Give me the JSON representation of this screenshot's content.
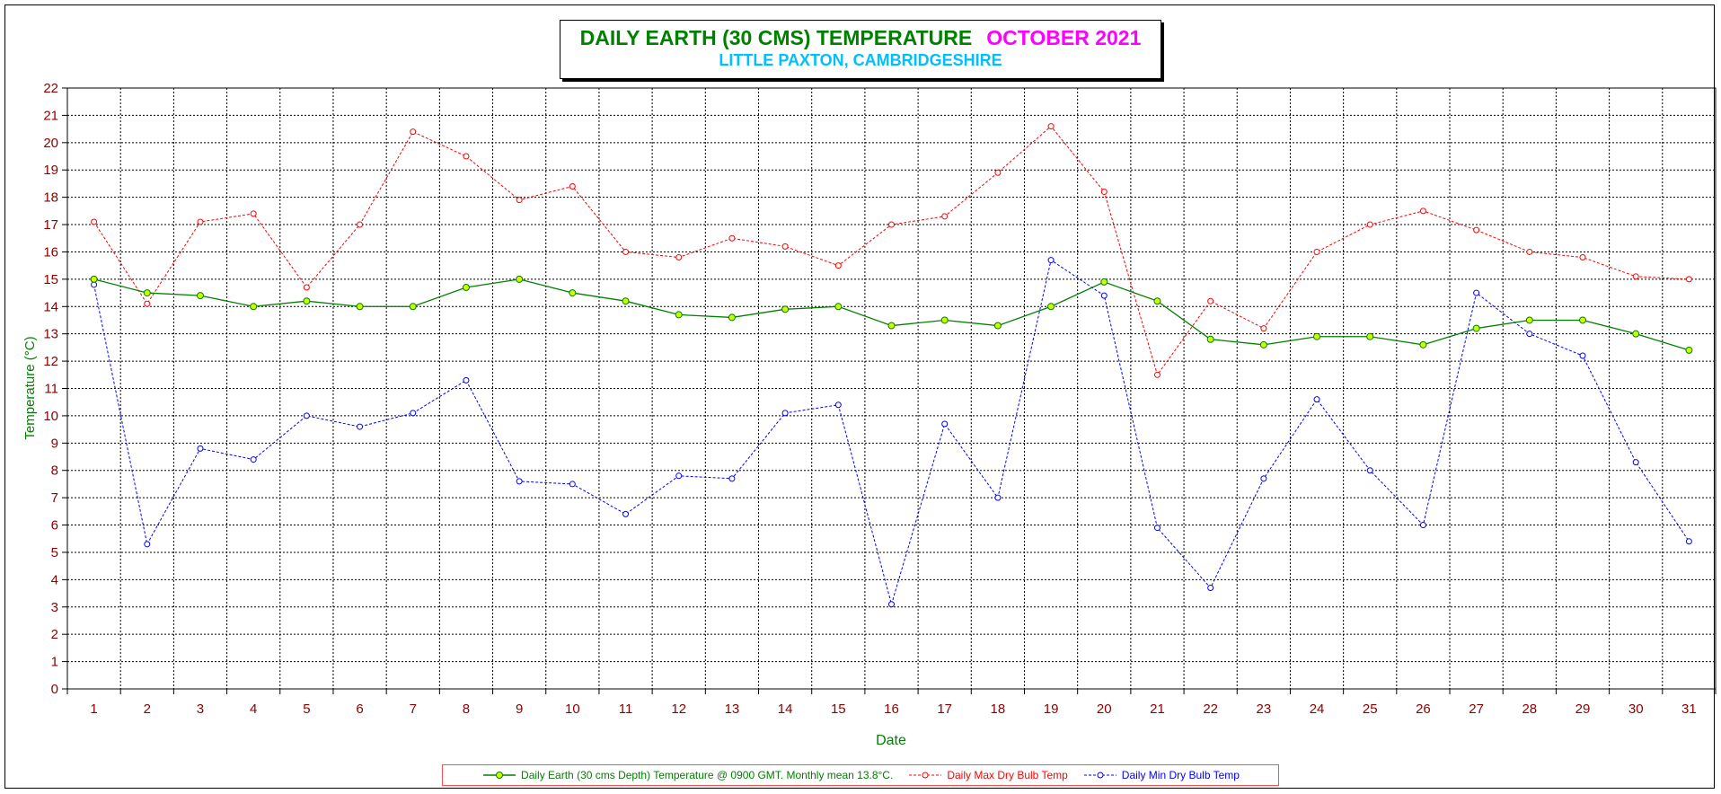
{
  "chart_data": {
    "type": "line",
    "title": "DAILY EARTH (30 CMS) TEMPERATURE",
    "title_month": "OCTOBER 2021",
    "subtitle": "LITTLE PAXTON, CAMBRIDGESHIRE",
    "xlabel": "Date",
    "ylabel": "Temperature (°C)",
    "ylim": [
      0,
      22
    ],
    "yticks": [
      0,
      1,
      2,
      3,
      4,
      5,
      6,
      7,
      8,
      9,
      10,
      11,
      12,
      13,
      14,
      15,
      16,
      17,
      18,
      19,
      20,
      21,
      22
    ],
    "grid": true,
    "legend_position": "bottom",
    "categories": [
      "1",
      "2",
      "3",
      "4",
      "5",
      "6",
      "7",
      "8",
      "9",
      "10",
      "11",
      "12",
      "13",
      "14",
      "15",
      "16",
      "17",
      "18",
      "19",
      "20",
      "21",
      "22",
      "23",
      "24",
      "25",
      "26",
      "27",
      "28",
      "29",
      "30",
      "31"
    ],
    "series": [
      {
        "name": "Daily Earth (30 cms Depth) Temperature @ 0900 GMT. Monthly mean 13.8°C.",
        "color": "#008000",
        "marker_color": "#ccff00",
        "style": "solid",
        "values": [
          15.0,
          14.5,
          14.4,
          14.0,
          14.2,
          14.0,
          14.0,
          14.7,
          15.0,
          14.5,
          14.2,
          13.7,
          13.6,
          13.9,
          14.0,
          13.3,
          13.5,
          13.3,
          14.0,
          14.9,
          14.2,
          12.8,
          12.6,
          12.9,
          12.9,
          12.6,
          13.2,
          13.5,
          13.5,
          13.0,
          12.4
        ]
      },
      {
        "name": "Daily Max Dry Bulb Temp",
        "color": "#ff0000",
        "marker_color": "#ff0000",
        "style": "dashed",
        "values": [
          17.1,
          14.1,
          17.1,
          17.4,
          14.7,
          17.0,
          20.4,
          19.5,
          17.9,
          18.4,
          16.0,
          15.8,
          16.5,
          16.2,
          15.5,
          17.0,
          17.3,
          18.9,
          20.6,
          18.2,
          11.5,
          14.2,
          13.2,
          16.0,
          17.0,
          17.5,
          16.8,
          16.0,
          15.8,
          15.1,
          15.0
        ]
      },
      {
        "name": "Daily Min Dry Bulb Temp",
        "color": "#0000ff",
        "marker_color": "#0000ff",
        "style": "dashed",
        "values": [
          14.8,
          5.3,
          8.8,
          8.4,
          10.0,
          9.6,
          10.1,
          11.3,
          7.6,
          7.5,
          6.4,
          7.8,
          7.7,
          10.1,
          10.4,
          3.1,
          9.7,
          7.0,
          15.7,
          14.4,
          5.9,
          3.7,
          7.7,
          10.6,
          8.0,
          6.0,
          14.5,
          13.0,
          12.2,
          8.3,
          5.4
        ]
      }
    ]
  }
}
